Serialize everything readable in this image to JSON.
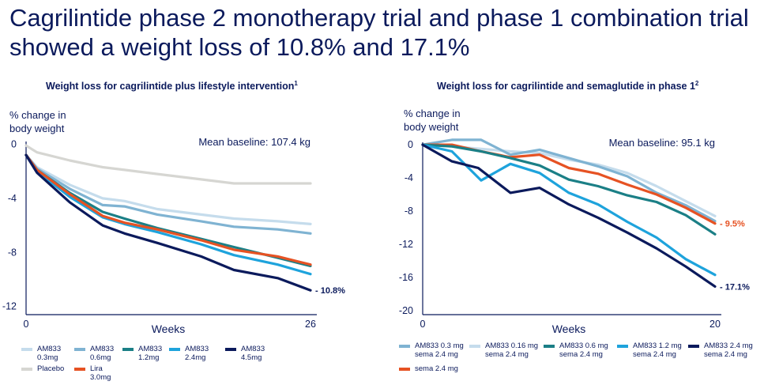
{
  "title": "Cagrilintide phase 2 monotherapy trial and phase 1 combination trial showed a weight loss of 10.8% and 17.1%",
  "chart_data": [
    {
      "type": "line",
      "title": "Weight loss for cagrilintide plus lifestyle intervention",
      "title_sup": "1",
      "ylabel_lines": [
        "% change in",
        "body weight"
      ],
      "xlabel": "Weeks",
      "note": "Mean baseline: 107.4 kg",
      "x_ticks": [
        0,
        26
      ],
      "y_ticks": [
        0,
        -4,
        -8,
        -12
      ],
      "xlim": [
        0,
        26
      ],
      "ylim": [
        -12.6,
        0.2
      ],
      "legend": "bottom",
      "grid": false,
      "series": [
        {
          "name": "AM833\n0.3mg",
          "color": "#c5dcec",
          "x": [
            0,
            1,
            4,
            7,
            9,
            12,
            16,
            19,
            23,
            26
          ],
          "y": [
            -0.8,
            -1.7,
            -3,
            -4,
            -4.2,
            -4.8,
            -5.2,
            -5.5,
            -5.7,
            -5.9
          ]
        },
        {
          "name": "AM833\n0.6mg",
          "color": "#7fb3d2",
          "x": [
            0,
            1,
            4,
            7,
            9,
            12,
            16,
            19,
            23,
            26
          ],
          "y": [
            -0.8,
            -1.8,
            -3.3,
            -4.5,
            -4.6,
            -5.2,
            -5.7,
            -6.1,
            -6.3,
            -6.6
          ]
        },
        {
          "name": "AM833\n1.2mg",
          "color": "#1b7f86",
          "x": [
            0,
            1,
            4,
            7,
            9,
            12,
            16,
            19,
            23,
            26
          ],
          "y": [
            -0.8,
            -1.9,
            -3.6,
            -5,
            -5.5,
            -6.2,
            -7,
            -7.6,
            -8.4,
            -9
          ]
        },
        {
          "name": "AM833\n2.4mg",
          "color": "#1ea3dc",
          "x": [
            0,
            1,
            4,
            7,
            9,
            12,
            16,
            19,
            23,
            26
          ],
          "y": [
            -0.8,
            -2,
            -3.9,
            -5.4,
            -5.9,
            -6.5,
            -7.4,
            -8.2,
            -8.9,
            -9.6
          ]
        },
        {
          "name": "AM833\n4.5mg",
          "color": "#0b1a5c",
          "x": [
            0,
            1,
            4,
            7,
            9,
            12,
            16,
            19,
            23,
            26
          ],
          "y": [
            -0.8,
            -2.1,
            -4.3,
            -6,
            -6.6,
            -7.3,
            -8.3,
            -9.3,
            -9.9,
            -10.8
          ]
        },
        {
          "name": "Placebo",
          "color": "#d6d6d2",
          "x": [
            0,
            1,
            4,
            7,
            9,
            12,
            16,
            19,
            23,
            26
          ],
          "y": [
            -0.1,
            -0.6,
            -1.2,
            -1.7,
            -1.9,
            -2.2,
            -2.6,
            -2.9,
            -2.9,
            -2.9
          ]
        },
        {
          "name": "Lira\n3.0mg",
          "color": "#e65223",
          "x": [
            0,
            1,
            4,
            7,
            9,
            12,
            16,
            19,
            23,
            26
          ],
          "y": [
            -0.8,
            -1.9,
            -3.7,
            -5.3,
            -5.8,
            -6.3,
            -7.1,
            -7.8,
            -8.3,
            -8.9
          ]
        }
      ],
      "end_label": {
        "text": "- 10.8%",
        "series": "AM833\n4.5mg",
        "color": "#0b1a5c"
      }
    },
    {
      "type": "line",
      "title": "Weight loss for cagrilintide and semaglutide in phase 1",
      "title_sup": "2",
      "ylabel_lines": [
        "% change in",
        "body weight"
      ],
      "xlabel": "Weeks",
      "note": "Mean baseline: 95.1 kg",
      "x_ticks": [
        0,
        20
      ],
      "y_ticks": [
        0,
        -4,
        -8,
        -12,
        -16,
        -20
      ],
      "xlim": [
        0,
        20
      ],
      "ylim": [
        -20.5,
        0.3
      ],
      "legend": "bottom",
      "grid": false,
      "series": [
        {
          "name": "AM833 0.3 mg\nsema 2.4 mg",
          "color": "#7fb3d2",
          "x": [
            0,
            2,
            4,
            6,
            8,
            10,
            12,
            14,
            16,
            18,
            20
          ],
          "y": [
            0,
            0.6,
            0.6,
            -1.2,
            -0.6,
            -1.6,
            -2.6,
            -3.8,
            -5.8,
            -7.3,
            -9.2
          ]
        },
        {
          "name": "AM833 0.16 mg\nsema 2.4 mg",
          "color": "#c5dcec",
          "x": [
            0,
            2,
            4,
            6,
            8,
            10,
            12,
            14,
            16,
            18,
            20
          ],
          "y": [
            0,
            -0.2,
            -0.5,
            -0.8,
            -1.0,
            -1.8,
            -2.4,
            -3.4,
            -5.0,
            -6.8,
            -8.6
          ]
        },
        {
          "name": "AM833 0.6 mg\nsema 2.4 mg",
          "color": "#1b7f86",
          "x": [
            0,
            2,
            4,
            6,
            8,
            10,
            12,
            14,
            16,
            18,
            20
          ],
          "y": [
            0,
            -0.2,
            -0.8,
            -1.6,
            -2.5,
            -4.2,
            -5.0,
            -6.1,
            -6.9,
            -8.5,
            -10.8
          ]
        },
        {
          "name": "AM833 1.2 mg\nsema 2.4 mg",
          "color": "#1ea3dc",
          "x": [
            0,
            2,
            4,
            6,
            8,
            10,
            12,
            14,
            16,
            18,
            20
          ],
          "y": [
            0,
            -0.8,
            -4.3,
            -2.3,
            -3.4,
            -5.8,
            -7.2,
            -9.3,
            -11.2,
            -13.8,
            -15.7
          ]
        },
        {
          "name": "AM833 2.4 mg\nsema 2.4 mg",
          "color": "#0b1a5c",
          "x": [
            0,
            2,
            3.8,
            6,
            8,
            10,
            12,
            14,
            16,
            18,
            20
          ],
          "y": [
            0,
            -2,
            -2.8,
            -5.8,
            -5.2,
            -7.2,
            -8.8,
            -10.6,
            -12.5,
            -14.7,
            -17.1
          ]
        },
        {
          "name": "sema 2.4 mg",
          "color": "#e65223",
          "x": [
            0,
            2,
            4,
            6,
            8,
            10,
            12,
            14,
            16,
            18,
            20
          ],
          "y": [
            0,
            0,
            -0.8,
            -1.5,
            -1.2,
            -2.8,
            -3.5,
            -4.8,
            -6,
            -7.6,
            -9.5
          ]
        }
      ],
      "end_labels": [
        {
          "text": "- 9.5%",
          "series": "sema 2.4 mg",
          "color": "#e65223"
        },
        {
          "text": "- 17.1%",
          "series": "AM833 2.4 mg\nsema 2.4 mg",
          "color": "#0b1a5c"
        }
      ]
    }
  ]
}
